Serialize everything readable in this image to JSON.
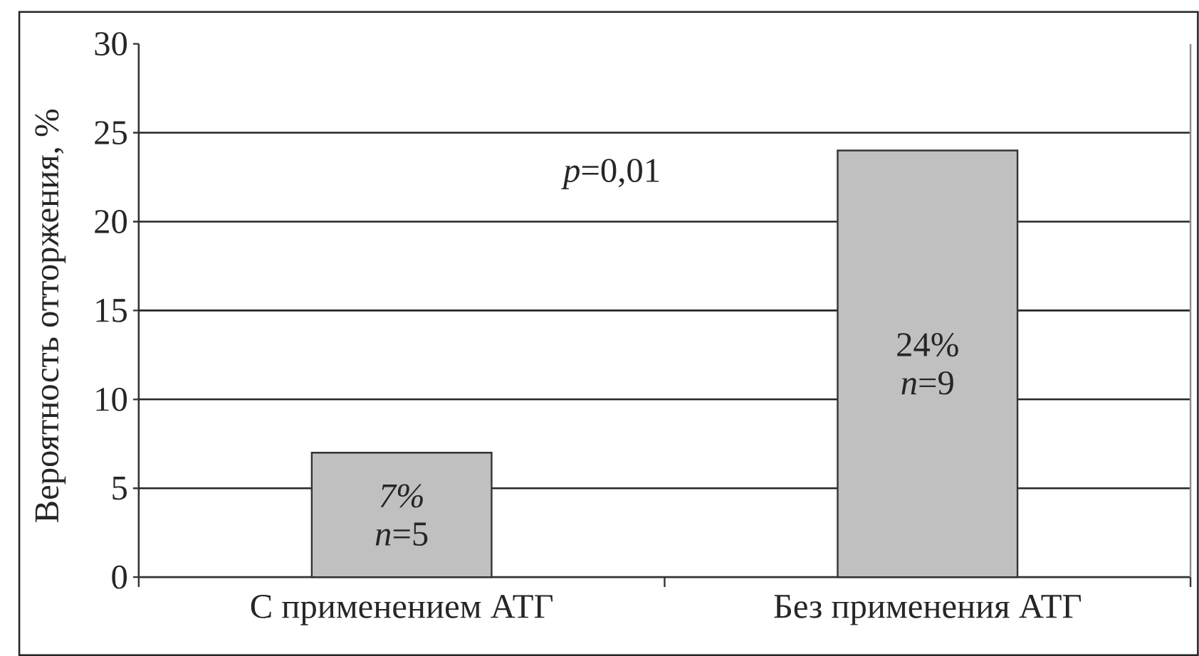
{
  "chart_data": {
    "type": "bar",
    "ylabel": "Вероятность отторжения, %",
    "categories": [
      "С применением АТГ",
      "Без применения АТГ"
    ],
    "values": [
      7,
      24
    ],
    "value_labels": [
      "*7%* *n*=5",
      "24% *n*=9"
    ],
    "color": "#c0c0c0",
    "ylim": [
      0,
      30
    ],
    "yticks": [
      0,
      5,
      10,
      15,
      20,
      25,
      30
    ],
    "grid": "y",
    "annotations": [
      "*p*=0,01"
    ]
  }
}
